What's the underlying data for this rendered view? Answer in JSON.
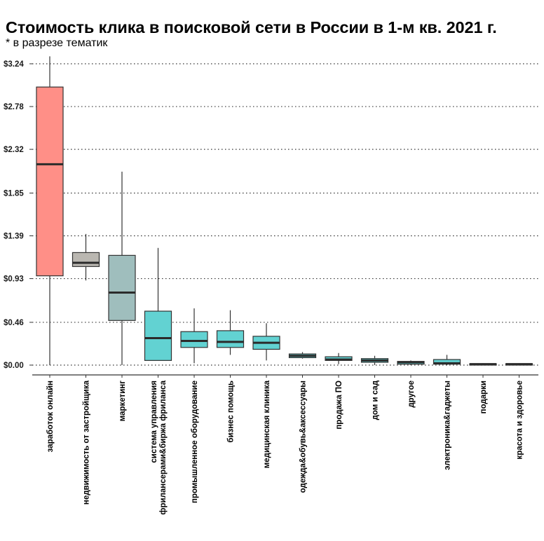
{
  "title": "Стоимость клика в поисковой сети в России в 1-м кв. 2021 г.",
  "subtitle": "* в разрезе тематик",
  "chart_data": {
    "type": "boxplot",
    "title": "Стоимость клика в поисковой сети в России в 1-м кв. 2021 г.",
    "subtitle": "* в разрезе тематик",
    "ylim": [
      0,
      3.24
    ],
    "yticks": [
      0.0,
      0.46,
      0.93,
      1.39,
      1.85,
      2.32,
      2.78,
      3.24
    ],
    "ytick_labels": [
      "$0.00",
      "$0.46",
      "$0.93",
      "$1.39",
      "$1.85",
      "$2.32",
      "$2.78",
      "$3.24"
    ],
    "grid": "horizontal-dotted",
    "color_scale": {
      "low": "#40d0d0",
      "high": "#ff8c82"
    },
    "categories": [
      [
        "заработок онлайн"
      ],
      [
        "недвижимость от застройщика"
      ],
      [
        "маркетинг"
      ],
      [
        "система управления",
        "фрилансерами&биржа фриланса"
      ],
      [
        "промышленное оборудование"
      ],
      [
        "бизнес помощь"
      ],
      [
        "медицинская клиника"
      ],
      [
        "одежда&обувь&аксессуары"
      ],
      [
        "продажа ПО"
      ],
      [
        "дом и сад"
      ],
      [
        "другое"
      ],
      [
        "электроника&гаджеты"
      ],
      [
        "подарки"
      ],
      [
        "красота и здоровье"
      ]
    ],
    "boxes": [
      {
        "min": 0.0,
        "q1": 0.96,
        "median": 2.16,
        "q3": 2.99,
        "max": 3.32,
        "color": "#ff8f87"
      },
      {
        "min": 0.91,
        "q1": 1.06,
        "median": 1.1,
        "q3": 1.21,
        "max": 1.41,
        "color": "#bab7b1"
      },
      {
        "min": 0.0,
        "q1": 0.48,
        "median": 0.78,
        "q3": 1.18,
        "max": 2.08,
        "color": "#9fbebd"
      },
      {
        "min": 0.05,
        "q1": 0.05,
        "median": 0.29,
        "q3": 0.58,
        "max": 1.26,
        "color": "#62d2d2"
      },
      {
        "min": 0.02,
        "q1": 0.19,
        "median": 0.26,
        "q3": 0.36,
        "max": 0.61,
        "color": "#62d2d2"
      },
      {
        "min": 0.11,
        "q1": 0.19,
        "median": 0.25,
        "q3": 0.37,
        "max": 0.59,
        "color": "#62d2d2"
      },
      {
        "min": 0.05,
        "q1": 0.17,
        "median": 0.24,
        "q3": 0.31,
        "max": 0.45,
        "color": "#62d2d2"
      },
      {
        "min": 0.07,
        "q1": 0.08,
        "median": 0.1,
        "q3": 0.12,
        "max": 0.14,
        "color": "#62d2d2"
      },
      {
        "min": 0.01,
        "q1": 0.05,
        "median": 0.06,
        "q3": 0.09,
        "max": 0.13,
        "color": "#62d2d2"
      },
      {
        "min": 0.0,
        "q1": 0.03,
        "median": 0.05,
        "q3": 0.07,
        "max": 0.1,
        "color": "#62d2d2"
      },
      {
        "min": 0.0,
        "q1": 0.01,
        "median": 0.03,
        "q3": 0.04,
        "max": 0.05,
        "color": "#62d2d2"
      },
      {
        "min": 0.0,
        "q1": 0.01,
        "median": 0.02,
        "q3": 0.06,
        "max": 0.11,
        "color": "#62d2d2"
      },
      {
        "min": 0.0,
        "q1": 0.005,
        "median": 0.01,
        "q3": 0.015,
        "max": 0.02,
        "color": "#62d2d2"
      },
      {
        "min": 0.0,
        "q1": 0.005,
        "median": 0.01,
        "q3": 0.015,
        "max": 0.02,
        "color": "#62d2d2"
      }
    ]
  }
}
